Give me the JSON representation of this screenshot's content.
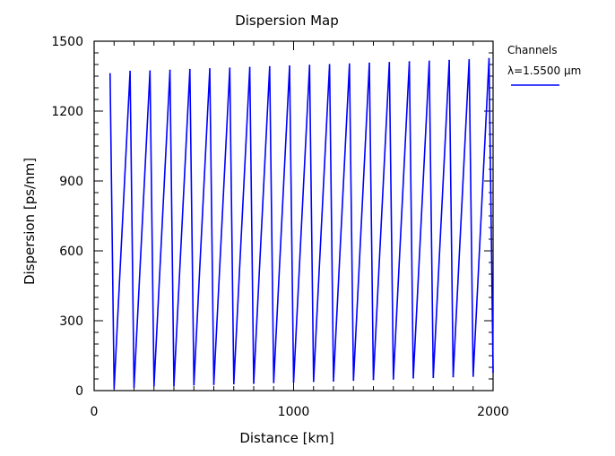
{
  "chart_data": {
    "type": "line",
    "title": "Dispersion Map",
    "xlabel": "Distance [km]",
    "ylabel": "Dispersion [ps/nm]",
    "xlim": [
      0,
      2000
    ],
    "ylim": [
      0,
      1500
    ],
    "xticks": [
      "0",
      "1000",
      "2000"
    ],
    "yticks": [
      "0",
      "300",
      "600",
      "900",
      "1200",
      "1500"
    ],
    "grid": false,
    "legend": {
      "title": "Channels",
      "position": "right",
      "entries": [
        {
          "label": "λ=1.5500 µm",
          "color": "#0000ff"
        }
      ]
    },
    "series": [
      {
        "name": "λ=1.5500 µm",
        "color": "#0000ff",
        "x": [
          80,
          100,
          180,
          200,
          280,
          300,
          380,
          400,
          480,
          500,
          580,
          600,
          680,
          700,
          780,
          800,
          880,
          900,
          980,
          1000,
          1080,
          1100,
          1180,
          1200,
          1280,
          1300,
          1380,
          1400,
          1480,
          1500,
          1580,
          1600,
          1680,
          1700,
          1780,
          1800,
          1880,
          1900,
          1980,
          2000
        ],
        "y": [
          1360,
          10,
          1370,
          15,
          1372,
          20,
          1375,
          22,
          1378,
          25,
          1381,
          27,
          1384,
          30,
          1387,
          32,
          1390,
          35,
          1393,
          37,
          1396,
          40,
          1399,
          42,
          1402,
          45,
          1405,
          48,
          1408,
          50,
          1411,
          55,
          1414,
          57,
          1417,
          60,
          1420,
          62,
          1425,
          80
        ]
      }
    ]
  }
}
